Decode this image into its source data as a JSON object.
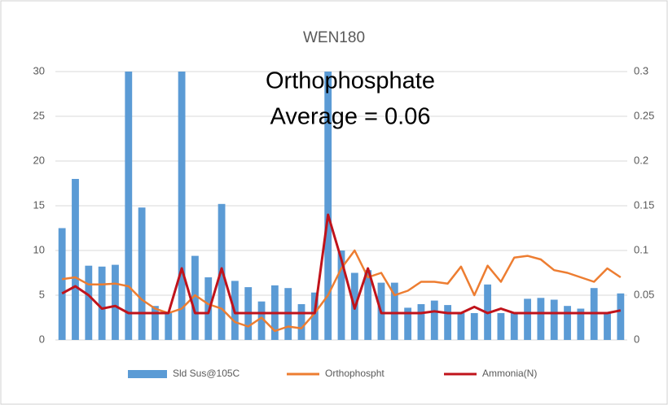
{
  "chart_data": {
    "type": "bar_line",
    "title": "WEN180",
    "annotation": [
      "Orthophosphate",
      "Average = 0.06"
    ],
    "series": [
      {
        "name": "Sld Sus@105C",
        "color": "#5b9bd5",
        "type": "bar",
        "axis": "y",
        "values": [
          12.5,
          18,
          8.3,
          8.2,
          8.4,
          30,
          14.8,
          3.8,
          3,
          30,
          9.4,
          7,
          15.2,
          6.6,
          5.9,
          4.3,
          6.1,
          5.8,
          4,
          5.3,
          30,
          10,
          7.5,
          7.8,
          6.4,
          6.4,
          3.6,
          4,
          4.4,
          3.9,
          3,
          3,
          6.2,
          3,
          3,
          4.6,
          4.7,
          4.5,
          3.8,
          3.5,
          5.8,
          3,
          5.2
        ]
      },
      {
        "name": "Orthophospht",
        "color": "#ed7d31",
        "type": "line",
        "axis": "y2",
        "values": [
          0.068,
          0.07,
          0.062,
          0.062,
          0.063,
          0.06,
          0.045,
          0.035,
          0.03,
          0.035,
          0.05,
          0.04,
          0.035,
          0.02,
          0.015,
          0.025,
          0.01,
          0.015,
          0.013,
          0.03,
          0.05,
          0.08,
          0.1,
          0.07,
          0.075,
          0.05,
          0.055,
          0.065,
          0.065,
          0.063,
          0.082,
          0.05,
          0.083,
          0.065,
          0.092,
          0.094,
          0.09,
          0.078,
          0.075,
          0.07,
          0.065,
          0.08,
          0.07
        ]
      },
      {
        "name": "Ammonia(N)",
        "color": "#c0131b",
        "type": "line",
        "axis": "y2",
        "values": [
          0.052,
          0.06,
          0.05,
          0.035,
          0.038,
          0.03,
          0.03,
          0.03,
          0.03,
          0.08,
          0.03,
          0.03,
          0.08,
          0.03,
          0.03,
          0.03,
          0.03,
          0.03,
          0.03,
          0.03,
          0.14,
          0.09,
          0.035,
          0.08,
          0.03,
          0.03,
          0.03,
          0.03,
          0.032,
          0.03,
          0.03,
          0.037,
          0.03,
          0.035,
          0.03,
          0.03,
          0.03,
          0.03,
          0.03,
          0.03,
          0.03,
          0.03,
          0.033
        ]
      }
    ],
    "ylim": [
      0,
      30
    ],
    "yticks": [
      0,
      5,
      10,
      15,
      20,
      25,
      30
    ],
    "y2lim": [
      0,
      0.3
    ],
    "y2ticks": [
      0,
      0.05,
      0.1,
      0.15,
      0.2,
      0.25,
      0.3
    ],
    "grid": true,
    "legend": "bottom"
  }
}
